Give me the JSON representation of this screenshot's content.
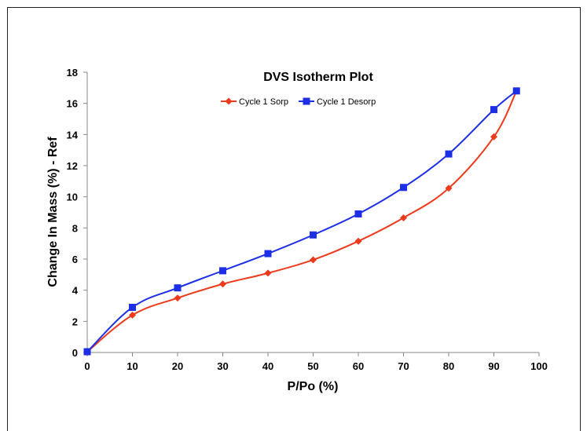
{
  "chart_data": {
    "type": "line",
    "title": "DVS Isotherm Plot",
    "xlabel": "P/Po (%)",
    "ylabel": "Change In Mass (%) - Ref",
    "xlim": [
      0,
      100
    ],
    "ylim": [
      0,
      18
    ],
    "x_ticks": [
      0,
      10,
      20,
      30,
      40,
      50,
      60,
      70,
      80,
      90,
      100
    ],
    "y_ticks": [
      0,
      2,
      4,
      6,
      8,
      10,
      12,
      14,
      16,
      18
    ],
    "grid": false,
    "legend": "top-center",
    "series": [
      {
        "name": "Cycle 1 Sorp",
        "color": "#ee3a1c",
        "marker": "diamond",
        "x": [
          0,
          10,
          20,
          30,
          40,
          50,
          60,
          70,
          80,
          90,
          95
        ],
        "y": [
          0.05,
          2.4,
          3.5,
          4.4,
          5.1,
          5.95,
          7.15,
          8.65,
          10.55,
          13.85,
          16.8
        ]
      },
      {
        "name": "Cycle 1 Desorp",
        "color": "#1c2ee6",
        "marker": "square",
        "x": [
          0,
          10,
          20,
          30,
          40,
          50,
          60,
          70,
          80,
          90,
          95
        ],
        "y": [
          0.05,
          2.9,
          4.15,
          5.25,
          6.35,
          7.55,
          8.9,
          10.6,
          12.75,
          15.6,
          16.8
        ]
      }
    ]
  }
}
